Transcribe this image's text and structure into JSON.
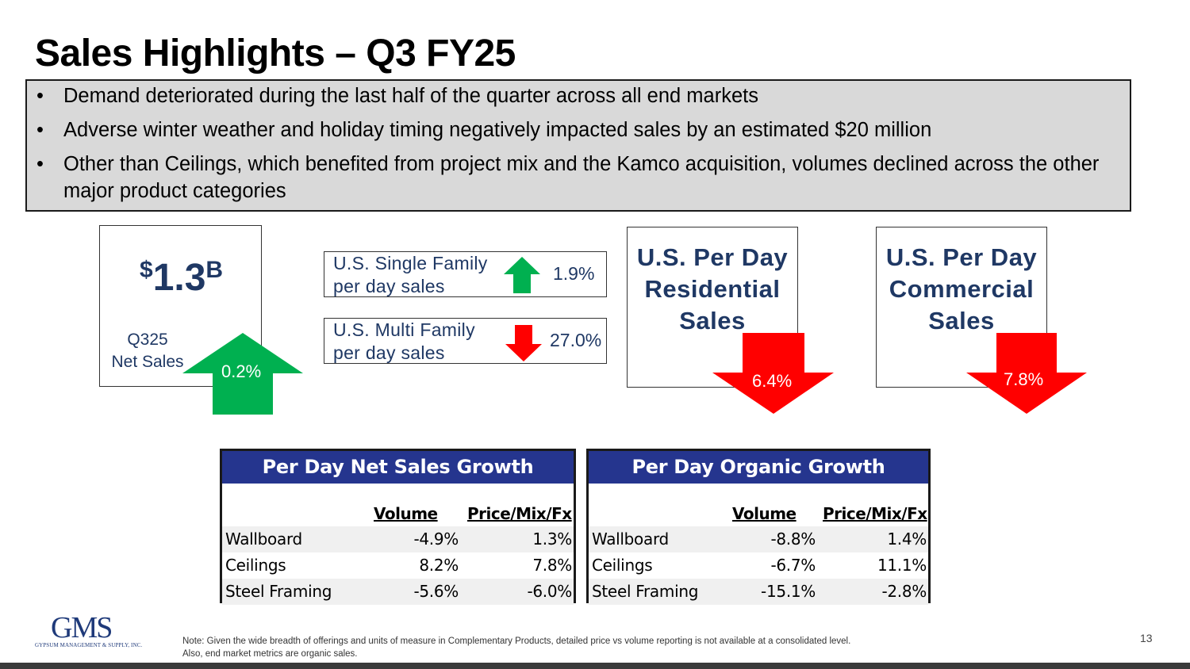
{
  "title": "Sales Highlights – Q3 FY25",
  "bullets": [
    "Demand deteriorated during the last half of the quarter across all end markets",
    "Adverse winter weather and holiday timing negatively impacted sales by an estimated $20 million",
    "Other than Ceilings, which benefited from project mix and the Kamco acquisition, volumes declined across the other major product categories"
  ],
  "bullet_symbol": "•",
  "net_sales": {
    "currency": "$",
    "value": "1.3",
    "unit": "B",
    "label_line1": "Q325",
    "label_line2": "Net Sales",
    "change": "0.2%",
    "direction": "up",
    "arrow_color": "#00b050"
  },
  "family_sales": {
    "single": {
      "line1": "U.S. Single Family",
      "line2": "per day sales",
      "value": "1.9%",
      "direction": "up",
      "arrow_color": "#00b050"
    },
    "multi": {
      "line1": "U.S. Multi Family",
      "line2": "per day sales",
      "value": "27.0%",
      "direction": "down",
      "arrow_color": "#ff0000"
    }
  },
  "segments": {
    "residential": {
      "line1": "U.S. Per Day",
      "line2": "Residential",
      "line3": "Sales",
      "change": "6.4%",
      "direction": "down",
      "arrow_color": "#ff0000"
    },
    "commercial": {
      "line1": "U.S. Per Day",
      "line2": "Commercial",
      "line3": "Sales",
      "change": "7.8%",
      "direction": "down",
      "arrow_color": "#ff0000"
    }
  },
  "tables": {
    "net_sales_growth": {
      "title": "Per Day Net Sales Growth",
      "col_volume": "Volume",
      "col_price": "Price/Mix/Fx",
      "rows": [
        {
          "name": "Wallboard",
          "volume": "-4.9%",
          "price": "1.3%"
        },
        {
          "name": "Ceilings",
          "volume": "8.2%",
          "price": "7.8%"
        },
        {
          "name": "Steel Framing",
          "volume": "-5.6%",
          "price": "-6.0%"
        }
      ]
    },
    "organic_growth": {
      "title": "Per Day Organic Growth",
      "col_volume": "Volume",
      "col_price": "Price/Mix/Fx",
      "rows": [
        {
          "name": "Wallboard",
          "volume": "-8.8%",
          "price": "1.4%"
        },
        {
          "name": "Ceilings",
          "volume": "-6.7%",
          "price": "11.1%"
        },
        {
          "name": "Steel Framing",
          "volume": "-15.1%",
          "price": "-2.8%"
        }
      ]
    }
  },
  "logo": {
    "main": "GMS",
    "sub": "GYPSUM MANAGEMENT & SUPPLY, INC."
  },
  "note_line1": "Note: Given the wide breadth of offerings and units of measure in Complementary Products, detailed price vs volume reporting is not available at a consolidated level.",
  "note_line2": "Also, end market metrics are organic sales.",
  "page_number": "13"
}
